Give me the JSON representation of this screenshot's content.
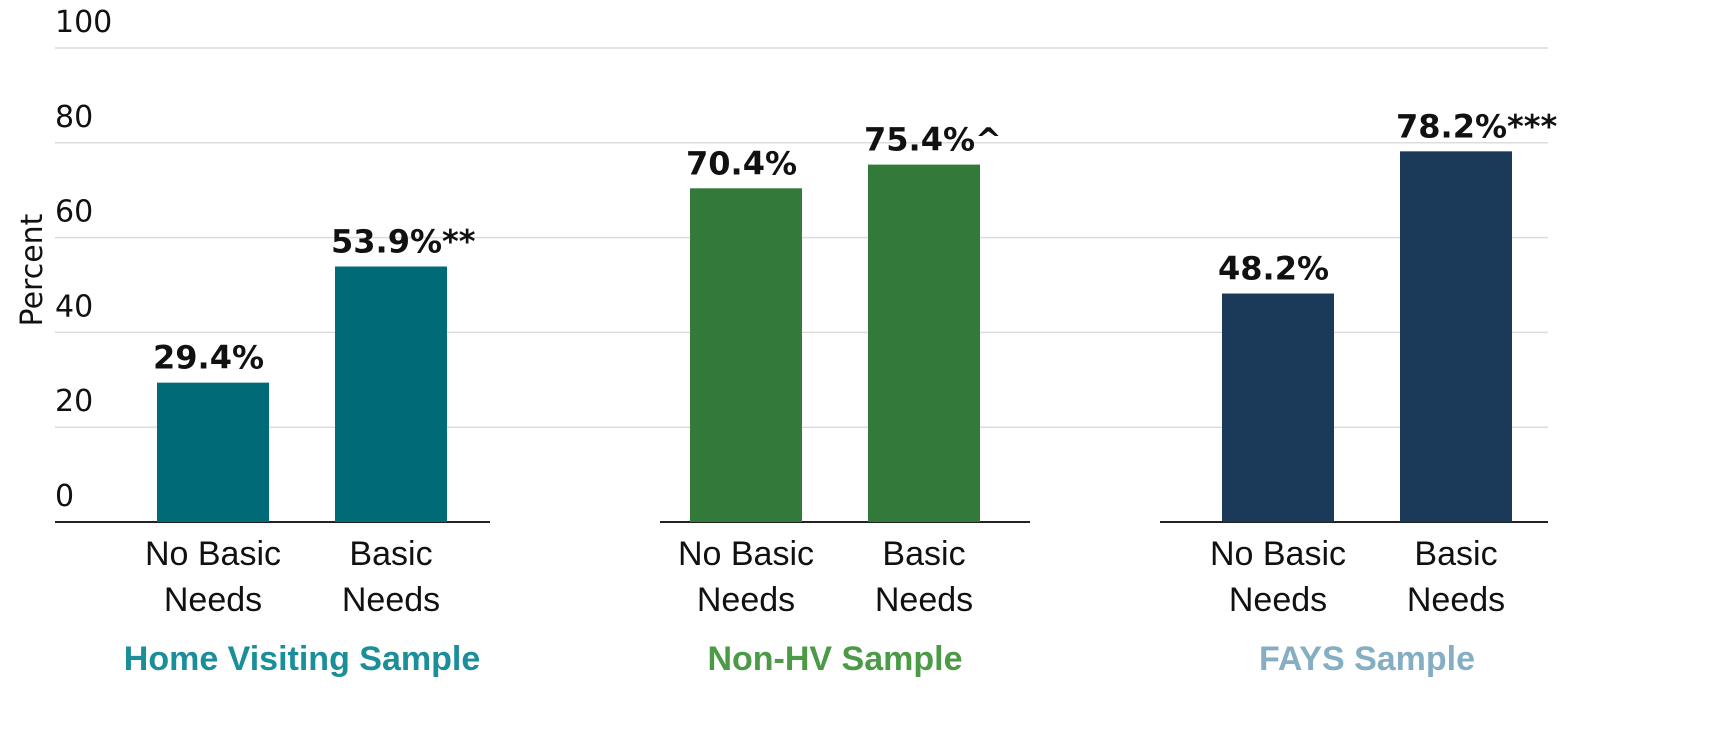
{
  "chart_data": {
    "type": "bar",
    "ylabel": "Percent",
    "ylim": [
      0,
      100
    ],
    "yticks": [
      "0",
      "20",
      "40",
      "60",
      "80",
      "100"
    ],
    "grid": true,
    "groups": [
      {
        "name": "Home Visiting Sample",
        "color": "#006a76",
        "label_color": "#1a8e99",
        "categories": [
          [
            "No Basic",
            "Needs"
          ],
          [
            "Basic",
            "Needs"
          ]
        ],
        "values": [
          29.4,
          53.9
        ],
        "labels": [
          "29.4%",
          "53.9%**"
        ]
      },
      {
        "name": "Non-HV Sample",
        "color": "#337a3a",
        "label_color": "#4a9a46",
        "categories": [
          [
            "No Basic",
            "Needs"
          ],
          [
            "Basic",
            "Needs"
          ]
        ],
        "values": [
          70.4,
          75.4
        ],
        "labels": [
          "70.4%",
          "75.4%^"
        ]
      },
      {
        "name": "FAYS Sample",
        "color": "#1b3a5a",
        "label_color": "#86aec3",
        "categories": [
          [
            "No Basic",
            "Needs"
          ],
          [
            "Basic",
            "Needs"
          ]
        ],
        "values": [
          48.2,
          78.2
        ],
        "labels": [
          "48.2%",
          "78.2%***"
        ]
      }
    ]
  }
}
